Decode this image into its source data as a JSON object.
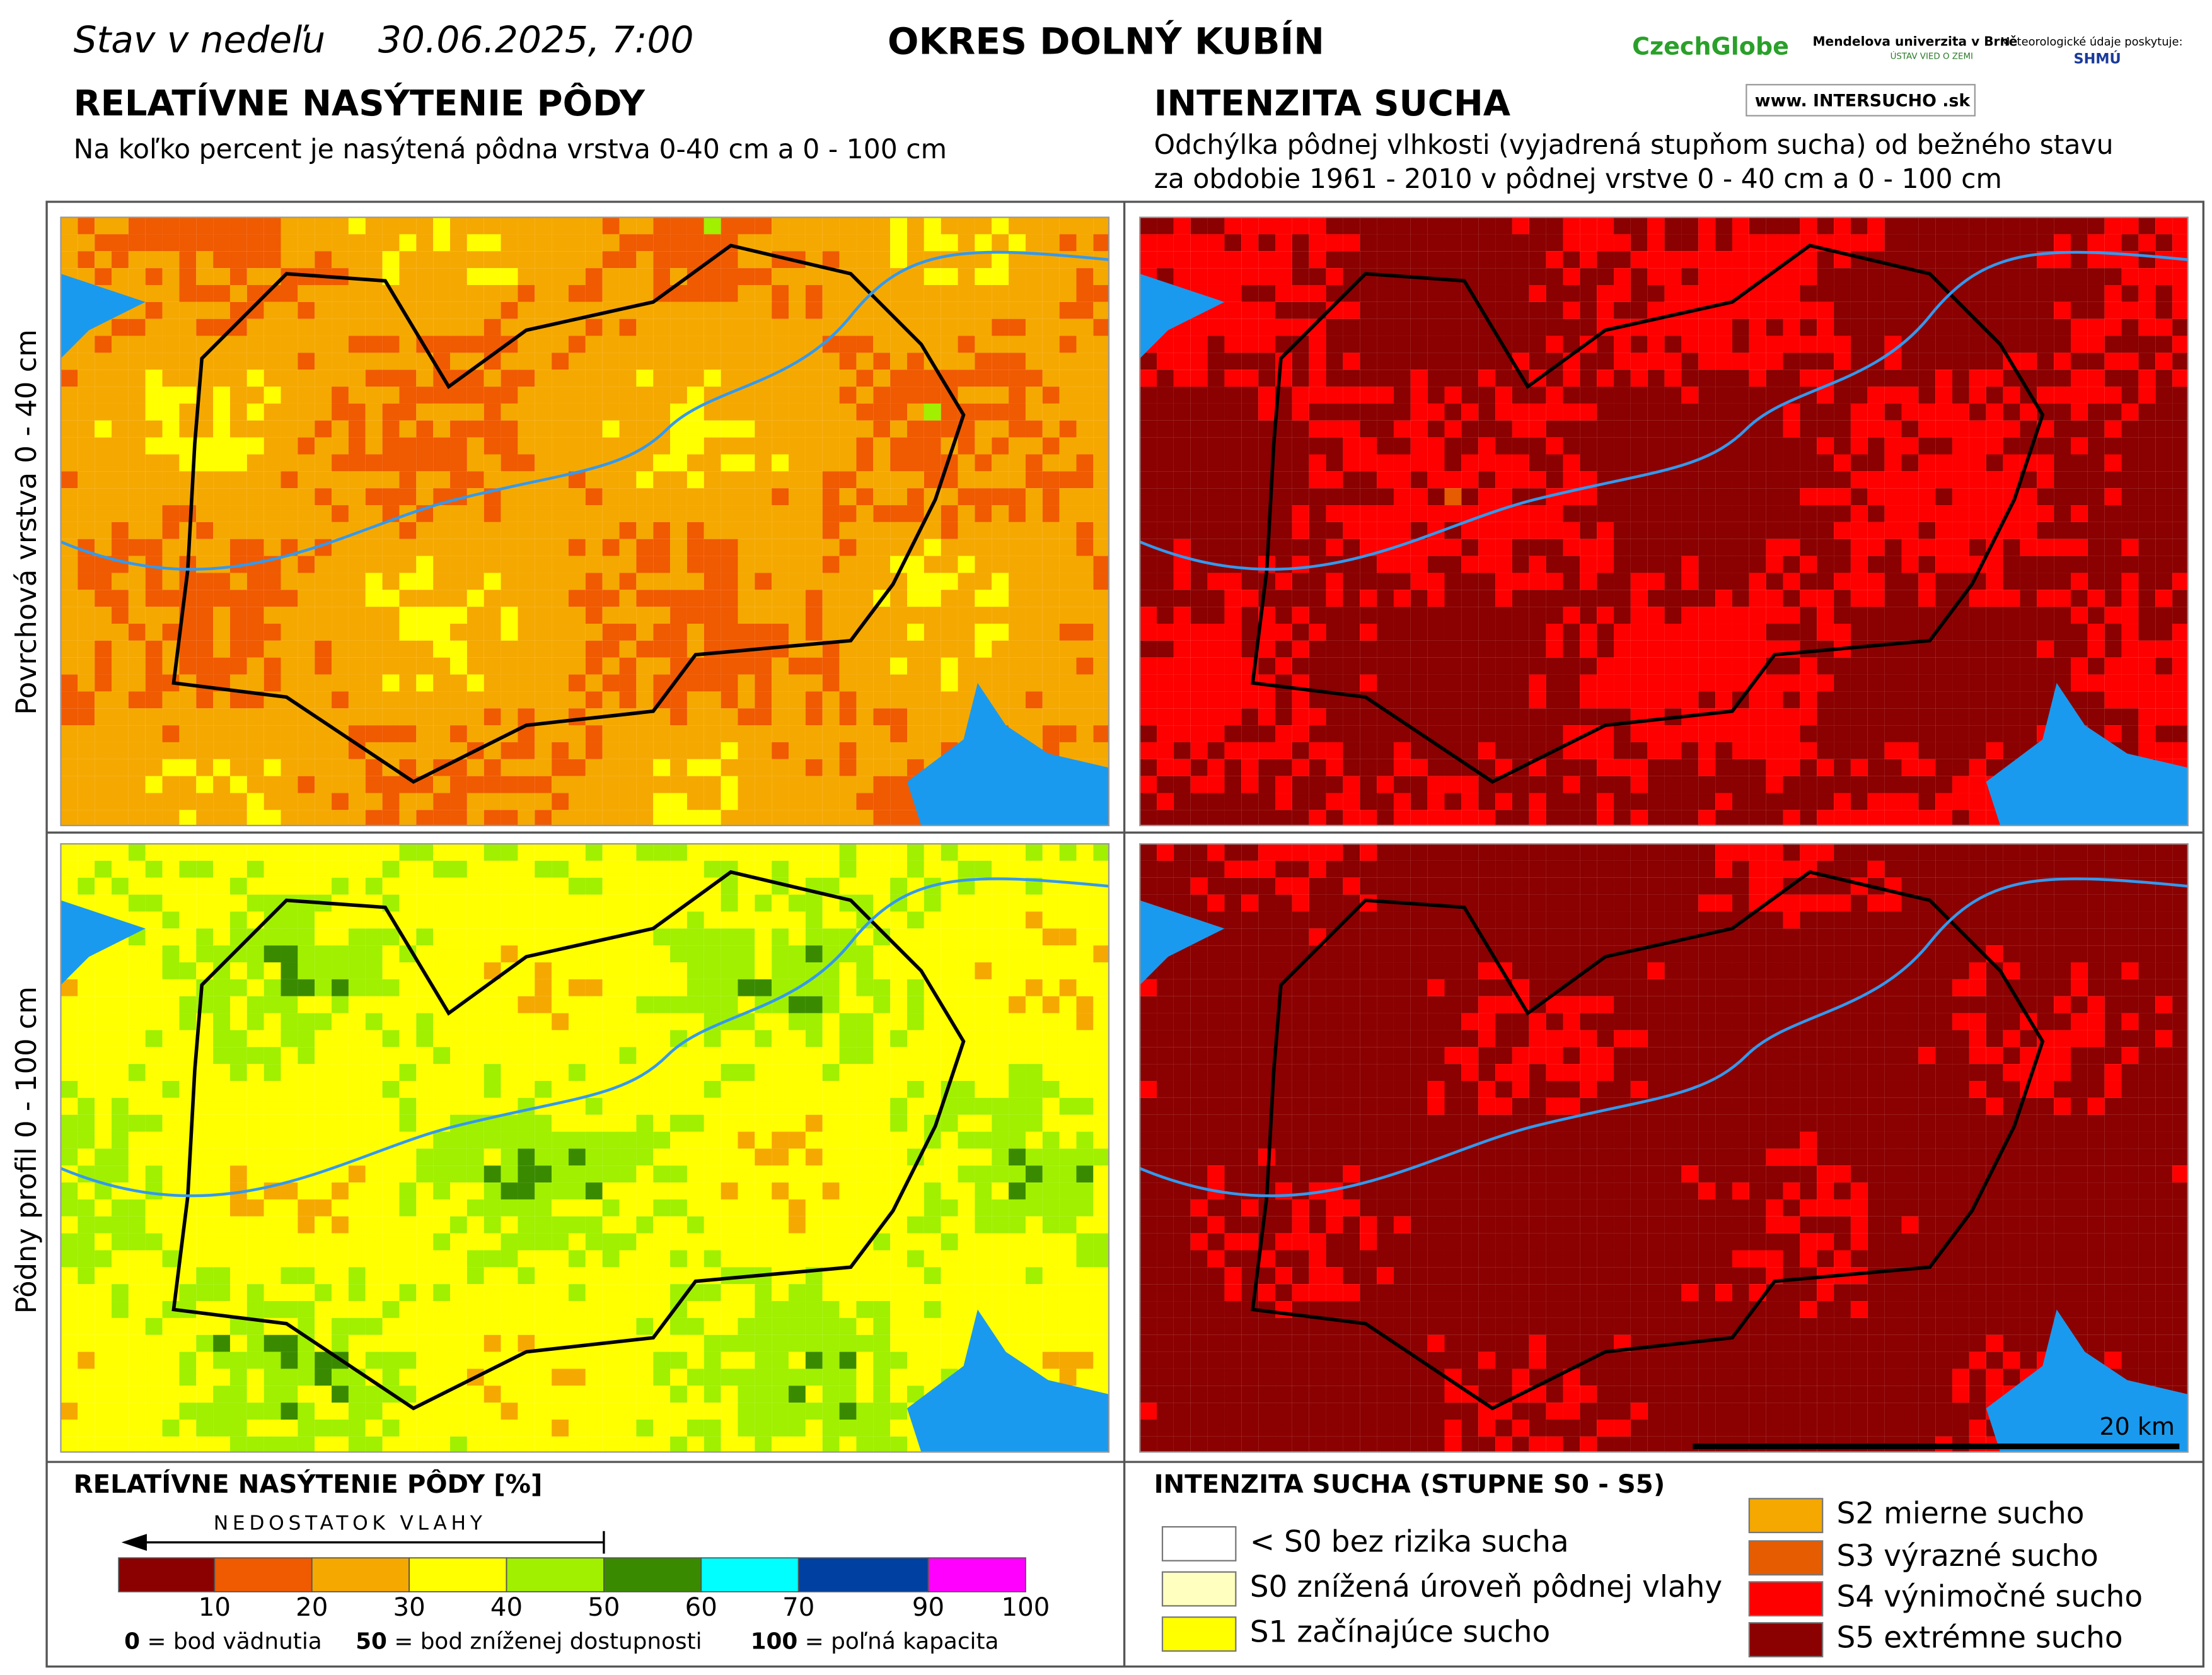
{
  "header": {
    "status": "Stav v nedeľu",
    "date": "30.06.2025, 7:00",
    "district": "OKRES  DOLNÝ KUBÍN",
    "logos": {
      "czechglobe": "CzechGlobe",
      "mendel": "Mendelova univerzita v Brně",
      "uvz": "ÚSTAV VIED O ZEMI",
      "meteo": "Meteorologické údaje poskytuje:",
      "shmu": "SHMÚ",
      "intersucho": "www. INTERSUCHO .sk"
    }
  },
  "left": {
    "title": "RELATÍVNE NASÝTENIE PÔDY",
    "subtitle": "Na koľko percent je nasýtená pôdna vrstva 0-40 cm a 0 - 100 cm"
  },
  "right": {
    "title": "INTENZITA SUCHA",
    "subtitle": [
      "Odchýlka pôdnej vlhkosti (vyjadrená stupňom sucha) od bežného stavu",
      "za obdobie 1961 - 2010 v pôdnej vrstve 0 - 40 cm a 0 - 100 cm"
    ]
  },
  "rows": [
    "Povrchová vrstva 0 - 40 cm",
    "Pôdny profil 0 - 100 cm"
  ],
  "scale_bar": "20 km",
  "legend_left": {
    "title": "RELATÍVNE NASÝTENIE PÔDY [%]",
    "arrow": "NEDOSTATOK VLAHY",
    "colors": [
      "#8b0000",
      "#f05a00",
      "#f5a800",
      "#ffff00",
      "#a0f000",
      "#3a8a00",
      "#00ffff",
      "#0040a0",
      "#ff00ff"
    ],
    "ticks": [
      10,
      20,
      30,
      40,
      50,
      60,
      70,
      90,
      100
    ],
    "notes": [
      [
        "0",
        "= bod vädnutia"
      ],
      [
        "50",
        "= bod zníženej dostupnosti"
      ],
      [
        "100",
        "= poľná kapacita"
      ]
    ]
  },
  "legend_right": {
    "title": "INTENZITA SUCHA (STUPNE S0 - S5)",
    "items": [
      {
        "label": "< S0 bez rizika sucha",
        "color": "#ffffff"
      },
      {
        "label": "S0 znížená úroveň pôdnej vlahy",
        "color": "#ffffc0"
      },
      {
        "label": "S1 začínajúce sucho",
        "color": "#ffff00"
      },
      {
        "label": "S2 mierne sucho",
        "color": "#f5a800"
      },
      {
        "label": "S3 výrazné sucho",
        "color": "#e65c00"
      },
      {
        "label": "S4 výnimočné sucho",
        "color": "#ff0000"
      },
      {
        "label": "S5 extrémne sucho",
        "color": "#8b0000"
      }
    ]
  }
}
